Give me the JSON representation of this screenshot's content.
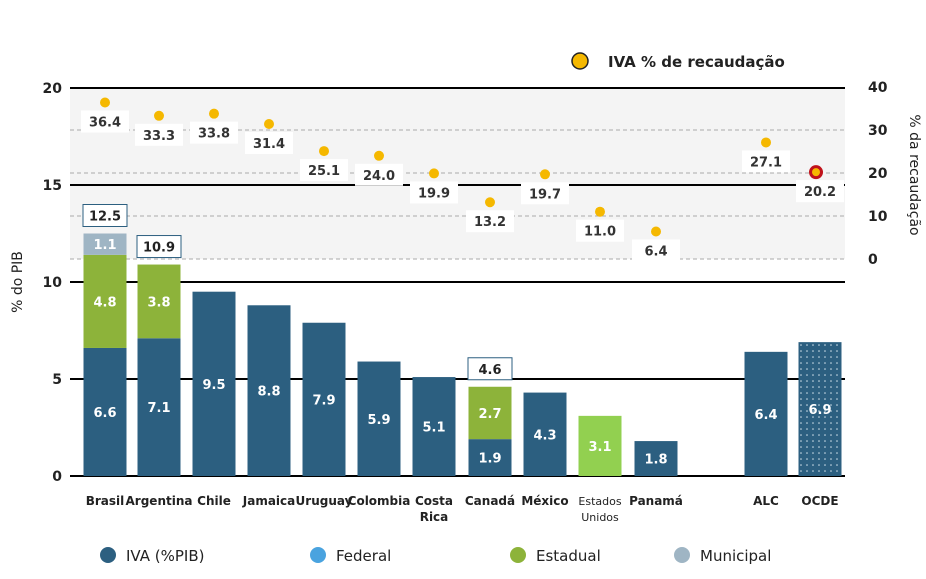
{
  "chart_data": {
    "type": "bar",
    "categories": [
      "Brasil",
      "Argentina",
      "Chile",
      "Jamaica",
      "Uruguay",
      "Colombia",
      "Costa Rica",
      "Canadá",
      "México",
      "Estados Unidos",
      "Panamá",
      "ALC",
      "OCDE"
    ],
    "ylabel": "% do PIB",
    "y2label": "% da recaudação",
    "ylim": [
      0,
      20
    ],
    "yticks": [
      0,
      5,
      10,
      15,
      20
    ],
    "y2lim": [
      0,
      40
    ],
    "y2ticks": [
      0,
      10,
      20,
      30,
      40
    ],
    "series": [
      {
        "name": "IVA (%PIB)",
        "color": "#2c5f80",
        "values": [
          6.6,
          7.1,
          9.5,
          8.8,
          7.9,
          5.9,
          5.1,
          1.9,
          4.3,
          null,
          1.8,
          6.4,
          6.9
        ]
      },
      {
        "name": "Federal",
        "color": "#4aa3df",
        "values": [
          null,
          null,
          null,
          null,
          null,
          null,
          null,
          null,
          null,
          null,
          null,
          null,
          null
        ]
      },
      {
        "name": "Estadual",
        "color": "#8db33a",
        "values": [
          4.8,
          3.8,
          null,
          null,
          null,
          null,
          null,
          2.7,
          null,
          3.1,
          null,
          null,
          null
        ]
      },
      {
        "name": "Municipal",
        "color": "#9fb5c4",
        "values": [
          1.1,
          null,
          null,
          null,
          null,
          null,
          null,
          null,
          null,
          null,
          null,
          null,
          null
        ]
      }
    ],
    "totals": [
      12.5,
      10.9,
      null,
      null,
      null,
      null,
      null,
      4.6,
      null,
      null,
      null,
      null,
      null
    ],
    "recaudacao": {
      "name": "IVA % de recaudação",
      "color": "#f5b800",
      "axis": "right",
      "values": [
        36.4,
        33.3,
        33.8,
        31.4,
        25.1,
        24.0,
        19.9,
        13.2,
        19.7,
        11.0,
        6.4,
        27.1,
        20.2
      ]
    },
    "legend_position": "bottom"
  }
}
